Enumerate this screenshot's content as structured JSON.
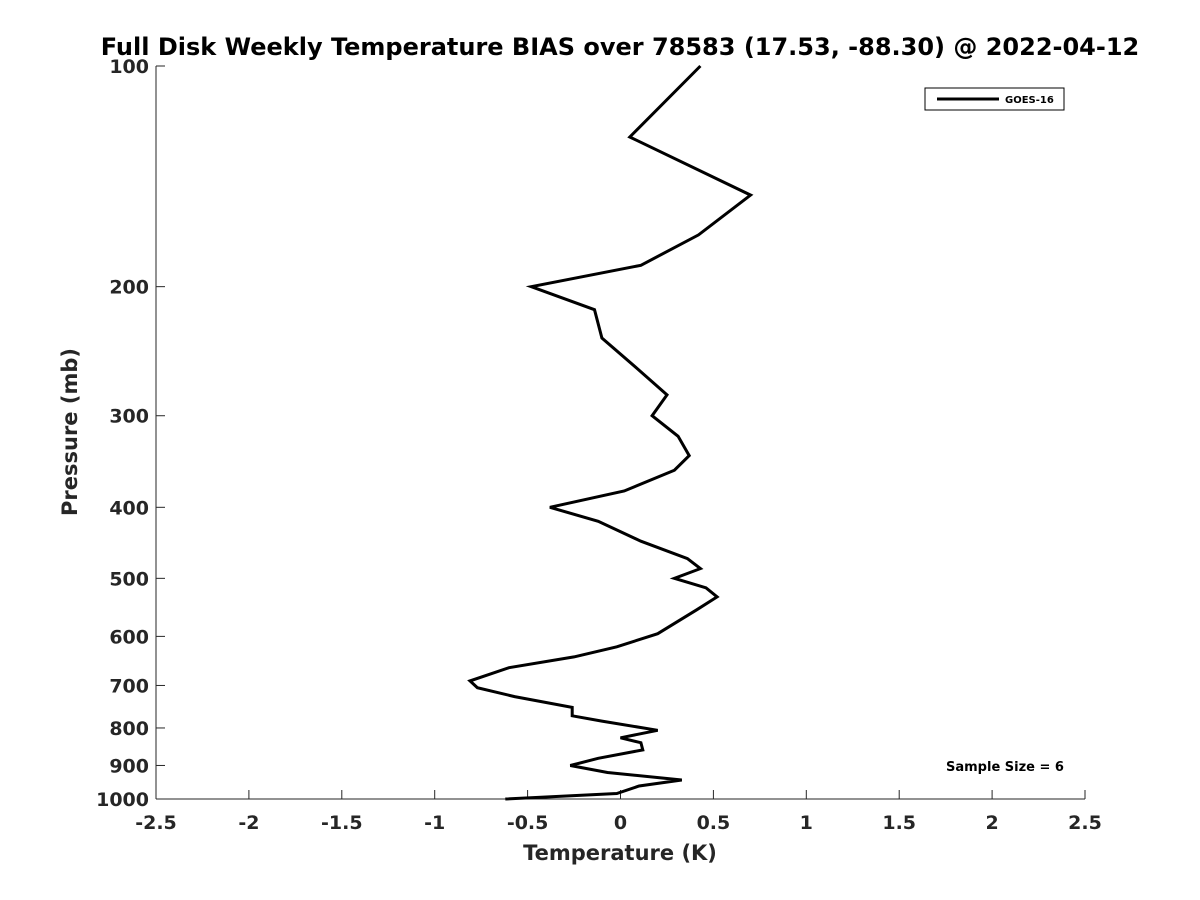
{
  "chart_data": {
    "type": "line",
    "title": "Full Disk Weekly Temperature BIAS over 78583 (17.53, -88.30) @ 2022-04-12",
    "xlabel": "Temperature (K)",
    "ylabel": "Pressure (mb)",
    "xlim": [
      -2.5,
      2.5
    ],
    "ylim": [
      100,
      1000
    ],
    "y_scale": "log",
    "y_reversed": true,
    "x_ticks": [
      -2.5,
      -2,
      -1.5,
      -1,
      -0.5,
      0,
      0.5,
      1,
      1.5,
      2,
      2.5
    ],
    "x_tick_labels": [
      "-2.5",
      "-2",
      "-1.5",
      "-1",
      "-0.5",
      "0",
      "0.5",
      "1",
      "1.5",
      "2",
      "2.5"
    ],
    "y_ticks": [
      100,
      200,
      300,
      400,
      500,
      600,
      700,
      800,
      900,
      1000
    ],
    "y_tick_labels": [
      "100",
      "200",
      "300",
      "400",
      "500",
      "600",
      "700",
      "800",
      "900",
      "1000"
    ],
    "legend_position": "top-right",
    "grid": false,
    "series": [
      {
        "name": "GOES-16",
        "color": "#000000",
        "points": [
          {
            "x": 0.43,
            "y": 100
          },
          {
            "x": 0.05,
            "y": 125
          },
          {
            "x": 0.7,
            "y": 150
          },
          {
            "x": 0.42,
            "y": 170
          },
          {
            "x": 0.11,
            "y": 187
          },
          {
            "x": -0.48,
            "y": 200
          },
          {
            "x": -0.14,
            "y": 215
          },
          {
            "x": -0.1,
            "y": 235
          },
          {
            "x": 0.1,
            "y": 260
          },
          {
            "x": 0.25,
            "y": 281
          },
          {
            "x": 0.17,
            "y": 300
          },
          {
            "x": 0.31,
            "y": 320
          },
          {
            "x": 0.37,
            "y": 340
          },
          {
            "x": 0.29,
            "y": 356
          },
          {
            "x": 0.02,
            "y": 380
          },
          {
            "x": -0.38,
            "y": 400
          },
          {
            "x": -0.12,
            "y": 418
          },
          {
            "x": 0.11,
            "y": 445
          },
          {
            "x": 0.36,
            "y": 470
          },
          {
            "x": 0.43,
            "y": 485
          },
          {
            "x": 0.29,
            "y": 500
          },
          {
            "x": 0.46,
            "y": 515
          },
          {
            "x": 0.52,
            "y": 530
          },
          {
            "x": 0.41,
            "y": 552
          },
          {
            "x": 0.2,
            "y": 595
          },
          {
            "x": -0.02,
            "y": 620
          },
          {
            "x": -0.25,
            "y": 640
          },
          {
            "x": -0.6,
            "y": 662
          },
          {
            "x": -0.81,
            "y": 690
          },
          {
            "x": -0.77,
            "y": 705
          },
          {
            "x": -0.57,
            "y": 725
          },
          {
            "x": -0.26,
            "y": 750
          },
          {
            "x": -0.26,
            "y": 770
          },
          {
            "x": -0.1,
            "y": 783
          },
          {
            "x": 0.2,
            "y": 806
          },
          {
            "x": 0.0,
            "y": 825
          },
          {
            "x": 0.11,
            "y": 838
          },
          {
            "x": 0.12,
            "y": 857
          },
          {
            "x": -0.12,
            "y": 880
          },
          {
            "x": -0.27,
            "y": 900
          },
          {
            "x": -0.07,
            "y": 920
          },
          {
            "x": 0.33,
            "y": 942
          },
          {
            "x": 0.1,
            "y": 960
          },
          {
            "x": -0.02,
            "y": 983
          },
          {
            "x": -0.62,
            "y": 1000
          }
        ]
      }
    ],
    "annotations": [
      {
        "text": "Sample Size = 6"
      }
    ]
  }
}
